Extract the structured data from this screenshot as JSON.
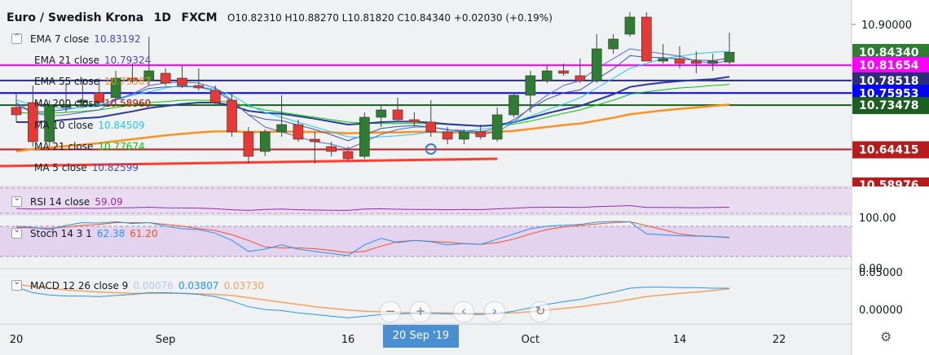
{
  "header": {
    "symbol": "Euro / Swedish Krona",
    "interval": "1D",
    "source": "FXCM",
    "ohlc": "O10.82310 H10.88270 L10.81820 C10.84340 +0.02030 (+0.19%)"
  },
  "legend": [
    {
      "label": "EMA 7 close",
      "value": "10.83192",
      "color": "#3d4fb8"
    },
    {
      "label": "EMA 21 close",
      "value": "10.79324",
      "color": "#3d4fb8"
    },
    {
      "label": "EMA 55 close",
      "value": "10.73567",
      "color": "#f7931e"
    },
    {
      "label": "MA 200 close",
      "value": "10.58960",
      "color": "#cc0000"
    },
    {
      "label": "MA 10 close",
      "value": "10.84509",
      "color": "#1ec8ff"
    },
    {
      "label": "MA 21 close",
      "value": "10.77674",
      "color": "#00cc00"
    },
    {
      "label": "MA 5 close",
      "value": "10.82599",
      "color": "#3d4fb8"
    }
  ],
  "rsi": {
    "label": "RSI 14 close",
    "value": "59.09",
    "color": "#9c27b0"
  },
  "stoch": {
    "label": "Stoch 14 3 1",
    "k": "62.38",
    "d": "61.20",
    "k_color": "#2196f3",
    "d_color": "#f4511e"
  },
  "macd": {
    "label": "MACD 12 26 close 9",
    "hist": "0.00076",
    "macd": "0.03807",
    "signal": "0.03730",
    "hist_color": "#b8c9ea",
    "macd_color": "#2196f3",
    "signal_color": "#f4a261"
  },
  "price_badges": [
    {
      "text": "10.84340",
      "bg": "#2e7d32",
      "fg": "#ffffff",
      "price": 10.8434
    },
    {
      "text": "10.81654",
      "bg": "#ff00ff",
      "fg": "#ffffff",
      "price": 10.81654
    },
    {
      "text": "10.78518",
      "bg": "#2a2d7a",
      "fg": "#ffffff",
      "price": 10.78518
    },
    {
      "text": "10.75953",
      "bg": "#0000ff",
      "fg": "#ffffff",
      "price": 10.75953
    },
    {
      "text": "10.73478",
      "bg": "#1b5e20",
      "fg": "#ffffff",
      "price": 10.73478
    },
    {
      "text": "10.64415",
      "bg": "#b71c1c",
      "fg": "#ffffff",
      "price": 10.64415
    }
  ],
  "axis": {
    "price_ticks": [
      "10.90000"
    ],
    "partial_tick": "10.58976",
    "stoch_ticks": [
      "100.00",
      "0.00"
    ],
    "macd_ticks": [
      "0.05000",
      "0.00000"
    ],
    "time_ticks": [
      {
        "label": "20",
        "i": 0
      },
      {
        "label": "Sep",
        "i": 9
      },
      {
        "label": "16",
        "i": 20
      },
      {
        "label": "Oct",
        "i": 31
      },
      {
        "label": "14",
        "i": 40
      },
      {
        "label": "22",
        "i": 46
      }
    ]
  },
  "crosshair_date": "20 Sep '19",
  "chart_data": {
    "type": "candlestick",
    "title": "Euro / Swedish Krona",
    "ylim": [
      10.57,
      10.95
    ],
    "horizontal_lines": [
      {
        "price": 10.81654,
        "color": "#ff00ff"
      },
      {
        "price": 10.78518,
        "color": "#2a2d7a"
      },
      {
        "price": 10.75953,
        "color": "#0000ff"
      },
      {
        "price": 10.73478,
        "color": "#1b5e20"
      },
      {
        "price": 10.64415,
        "color": "#b71c1c"
      }
    ],
    "trendline": {
      "from": [
        -1,
        10.61
      ],
      "to": [
        29,
        10.625
      ],
      "color": "#ff3b30"
    },
    "candles": [
      {
        "o": 10.73,
        "h": 10.76,
        "l": 10.7,
        "c": 10.715
      },
      {
        "o": 10.74,
        "h": 10.775,
        "l": 10.65,
        "c": 10.66
      },
      {
        "o": 10.66,
        "h": 10.745,
        "l": 10.65,
        "c": 10.735
      },
      {
        "o": 10.73,
        "h": 10.78,
        "l": 10.72,
        "c": 10.735
      },
      {
        "o": 10.74,
        "h": 10.79,
        "l": 10.73,
        "c": 10.745
      },
      {
        "o": 10.76,
        "h": 10.79,
        "l": 10.735,
        "c": 10.74
      },
      {
        "o": 10.75,
        "h": 10.805,
        "l": 10.745,
        "c": 10.79
      },
      {
        "o": 10.79,
        "h": 10.82,
        "l": 10.78,
        "c": 10.785
      },
      {
        "o": 10.785,
        "h": 10.875,
        "l": 10.775,
        "c": 10.805
      },
      {
        "o": 10.8,
        "h": 10.81,
        "l": 10.775,
        "c": 10.78
      },
      {
        "o": 10.79,
        "h": 10.815,
        "l": 10.77,
        "c": 10.775
      },
      {
        "o": 10.775,
        "h": 10.81,
        "l": 10.765,
        "c": 10.77
      },
      {
        "o": 10.765,
        "h": 10.775,
        "l": 10.735,
        "c": 10.74
      },
      {
        "o": 10.745,
        "h": 10.76,
        "l": 10.67,
        "c": 10.68
      },
      {
        "o": 10.68,
        "h": 10.69,
        "l": 10.615,
        "c": 10.63
      },
      {
        "o": 10.64,
        "h": 10.685,
        "l": 10.63,
        "c": 10.68
      },
      {
        "o": 10.68,
        "h": 10.755,
        "l": 10.67,
        "c": 10.695
      },
      {
        "o": 10.695,
        "h": 10.705,
        "l": 10.66,
        "c": 10.665
      },
      {
        "o": 10.665,
        "h": 10.68,
        "l": 10.615,
        "c": 10.66
      },
      {
        "o": 10.65,
        "h": 10.66,
        "l": 10.63,
        "c": 10.64
      },
      {
        "o": 10.64,
        "h": 10.65,
        "l": 10.62,
        "c": 10.625
      },
      {
        "o": 10.63,
        "h": 10.72,
        "l": 10.625,
        "c": 10.71
      },
      {
        "o": 10.71,
        "h": 10.735,
        "l": 10.69,
        "c": 10.725
      },
      {
        "o": 10.725,
        "h": 10.75,
        "l": 10.7,
        "c": 10.705
      },
      {
        "o": 10.705,
        "h": 10.72,
        "l": 10.69,
        "c": 10.7
      },
      {
        "o": 10.7,
        "h": 10.745,
        "l": 10.67,
        "c": 10.68
      },
      {
        "o": 10.68,
        "h": 10.69,
        "l": 10.655,
        "c": 10.665
      },
      {
        "o": 10.665,
        "h": 10.685,
        "l": 10.655,
        "c": 10.68
      },
      {
        "o": 10.68,
        "h": 10.695,
        "l": 10.665,
        "c": 10.67
      },
      {
        "o": 10.665,
        "h": 10.73,
        "l": 10.66,
        "c": 10.715
      },
      {
        "o": 10.715,
        "h": 10.76,
        "l": 10.71,
        "c": 10.755
      },
      {
        "o": 10.755,
        "h": 10.805,
        "l": 10.72,
        "c": 10.795
      },
      {
        "o": 10.785,
        "h": 10.815,
        "l": 10.78,
        "c": 10.805
      },
      {
        "o": 10.805,
        "h": 10.82,
        "l": 10.795,
        "c": 10.8
      },
      {
        "o": 10.795,
        "h": 10.83,
        "l": 10.78,
        "c": 10.785
      },
      {
        "o": 10.785,
        "h": 10.88,
        "l": 10.78,
        "c": 10.85
      },
      {
        "o": 10.85,
        "h": 10.88,
        "l": 10.84,
        "c": 10.87
      },
      {
        "o": 10.88,
        "h": 10.925,
        "l": 10.875,
        "c": 10.915
      },
      {
        "o": 10.915,
        "h": 10.925,
        "l": 10.825,
        "c": 10.825
      },
      {
        "o": 10.825,
        "h": 10.86,
        "l": 10.82,
        "c": 10.83
      },
      {
        "o": 10.83,
        "h": 10.855,
        "l": 10.81,
        "c": 10.82
      },
      {
        "o": 10.825,
        "h": 10.845,
        "l": 10.8,
        "c": 10.82
      },
      {
        "o": 10.82,
        "h": 10.84,
        "l": 10.805,
        "c": 10.825
      },
      {
        "o": 10.823,
        "h": 10.883,
        "l": 10.818,
        "c": 10.843
      }
    ],
    "series": {
      "ema7": [
        10.735,
        10.72,
        10.722,
        10.726,
        10.731,
        10.733,
        10.747,
        10.757,
        10.769,
        10.772,
        10.773,
        10.772,
        10.764,
        10.743,
        10.715,
        10.706,
        10.703,
        10.694,
        10.685,
        10.674,
        10.662,
        10.674,
        10.687,
        10.691,
        10.693,
        10.69,
        10.684,
        10.683,
        10.68,
        10.688,
        10.705,
        10.728,
        10.747,
        10.76,
        10.766,
        10.788,
        10.809,
        10.836,
        10.833,
        10.832,
        10.829,
        10.827,
        10.826,
        10.831
      ],
      "ema21": [
        10.7,
        10.7,
        10.702,
        10.705,
        10.708,
        10.71,
        10.716,
        10.722,
        10.729,
        10.733,
        10.737,
        10.74,
        10.74,
        10.734,
        10.723,
        10.719,
        10.717,
        10.712,
        10.707,
        10.701,
        10.695,
        10.697,
        10.7,
        10.701,
        10.701,
        10.699,
        10.696,
        10.694,
        10.692,
        10.694,
        10.7,
        10.709,
        10.718,
        10.726,
        10.733,
        10.745,
        10.757,
        10.772,
        10.777,
        10.781,
        10.784,
        10.786,
        10.788,
        10.793
      ],
      "ema55": [
        10.64,
        10.645,
        10.648,
        10.651,
        10.654,
        10.657,
        10.661,
        10.665,
        10.669,
        10.673,
        10.676,
        10.679,
        10.681,
        10.681,
        10.68,
        10.68,
        10.681,
        10.68,
        10.68,
        10.679,
        10.677,
        10.678,
        10.679,
        10.679,
        10.68,
        10.68,
        10.679,
        10.679,
        10.679,
        10.68,
        10.682,
        10.686,
        10.69,
        10.694,
        10.697,
        10.703,
        10.709,
        10.716,
        10.72,
        10.724,
        10.727,
        10.73,
        10.733,
        10.736
      ],
      "ma10": [
        10.745,
        10.735,
        10.73,
        10.728,
        10.73,
        10.735,
        10.745,
        10.755,
        10.762,
        10.77,
        10.775,
        10.772,
        10.768,
        10.755,
        10.735,
        10.72,
        10.71,
        10.7,
        10.69,
        10.68,
        10.67,
        10.668,
        10.67,
        10.672,
        10.675,
        10.68,
        10.68,
        10.682,
        10.685,
        10.69,
        10.7,
        10.712,
        10.725,
        10.737,
        10.75,
        10.77,
        10.79,
        10.81,
        10.82,
        10.83,
        10.835,
        10.84,
        10.843,
        10.845
      ],
      "ma21": [
        10.72,
        10.718,
        10.718,
        10.72,
        10.722,
        10.725,
        10.73,
        10.735,
        10.74,
        10.742,
        10.745,
        10.745,
        10.744,
        10.74,
        10.732,
        10.725,
        10.72,
        10.715,
        10.71,
        10.705,
        10.7,
        10.698,
        10.697,
        10.697,
        10.697,
        10.697,
        10.695,
        10.693,
        10.692,
        10.693,
        10.696,
        10.702,
        10.71,
        10.718,
        10.725,
        10.735,
        10.745,
        10.757,
        10.762,
        10.766,
        10.77,
        10.772,
        10.775,
        10.777
      ],
      "ma5": [
        10.74,
        10.72,
        10.712,
        10.715,
        10.72,
        10.725,
        10.745,
        10.758,
        10.775,
        10.78,
        10.782,
        10.78,
        10.77,
        10.745,
        10.715,
        10.69,
        10.68,
        10.67,
        10.66,
        10.655,
        10.645,
        10.66,
        10.675,
        10.685,
        10.69,
        10.69,
        10.685,
        10.68,
        10.675,
        10.68,
        10.7,
        10.73,
        10.755,
        10.775,
        10.785,
        10.81,
        10.83,
        10.85,
        10.845,
        10.84,
        10.835,
        10.825,
        10.82,
        10.826
      ]
    },
    "rsi_values": [
      50,
      45,
      48,
      50,
      52,
      50,
      55,
      56,
      60,
      55,
      54,
      53,
      48,
      40,
      35,
      42,
      45,
      40,
      38,
      36,
      35,
      45,
      48,
      44,
      43,
      42,
      40,
      42,
      41,
      47,
      52,
      58,
      60,
      60,
      58,
      65,
      68,
      72,
      58,
      58,
      57,
      56,
      58,
      59.09
    ],
    "rsi_ylim": [
      0,
      100
    ],
    "stoch_k": [
      88,
      85,
      80,
      90,
      96,
      95,
      98,
      94,
      96,
      88,
      82,
      80,
      72,
      55,
      30,
      35,
      45,
      35,
      30,
      25,
      20,
      45,
      60,
      50,
      55,
      52,
      45,
      48,
      46,
      58,
      70,
      82,
      88,
      90,
      92,
      97,
      99,
      98,
      70,
      68,
      66,
      65,
      64,
      62.38
    ],
    "stoch_d": [
      85,
      84,
      83,
      86,
      90,
      92,
      96,
      96,
      96,
      92,
      88,
      82,
      78,
      68,
      55,
      40,
      38,
      38,
      36,
      32,
      27,
      30,
      42,
      52,
      55,
      53,
      51,
      48,
      46,
      50,
      58,
      70,
      80,
      86,
      90,
      93,
      96,
      98,
      89,
      80,
      70,
      66,
      64,
      61.2
    ],
    "stoch_ylim": [
      -10,
      110
    ],
    "macd_line": [
      0.04,
      0.03,
      0.026,
      0.024,
      0.024,
      0.023,
      0.025,
      0.027,
      0.03,
      0.03,
      0.029,
      0.027,
      0.023,
      0.015,
      0.005,
      0.0,
      -0.002,
      -0.006,
      -0.009,
      -0.012,
      -0.015,
      -0.012,
      -0.009,
      -0.008,
      -0.007,
      -0.007,
      -0.008,
      -0.008,
      -0.009,
      -0.007,
      -0.003,
      0.003,
      0.009,
      0.014,
      0.018,
      0.025,
      0.031,
      0.038,
      0.04,
      0.04,
      0.039,
      0.039,
      0.038,
      0.03807
    ],
    "macd_signal": [
      0.045,
      0.041,
      0.038,
      0.035,
      0.033,
      0.031,
      0.03,
      0.029,
      0.029,
      0.029,
      0.029,
      0.028,
      0.027,
      0.025,
      0.021,
      0.017,
      0.013,
      0.009,
      0.005,
      0.002,
      -0.001,
      -0.003,
      -0.004,
      -0.005,
      -0.006,
      -0.006,
      -0.006,
      -0.007,
      -0.007,
      -0.007,
      -0.006,
      -0.004,
      -0.001,
      0.002,
      0.005,
      0.009,
      0.013,
      0.018,
      0.023,
      0.026,
      0.029,
      0.031,
      0.034,
      0.0373
    ],
    "macd_ylim": [
      -0.026,
      0.07
    ]
  }
}
